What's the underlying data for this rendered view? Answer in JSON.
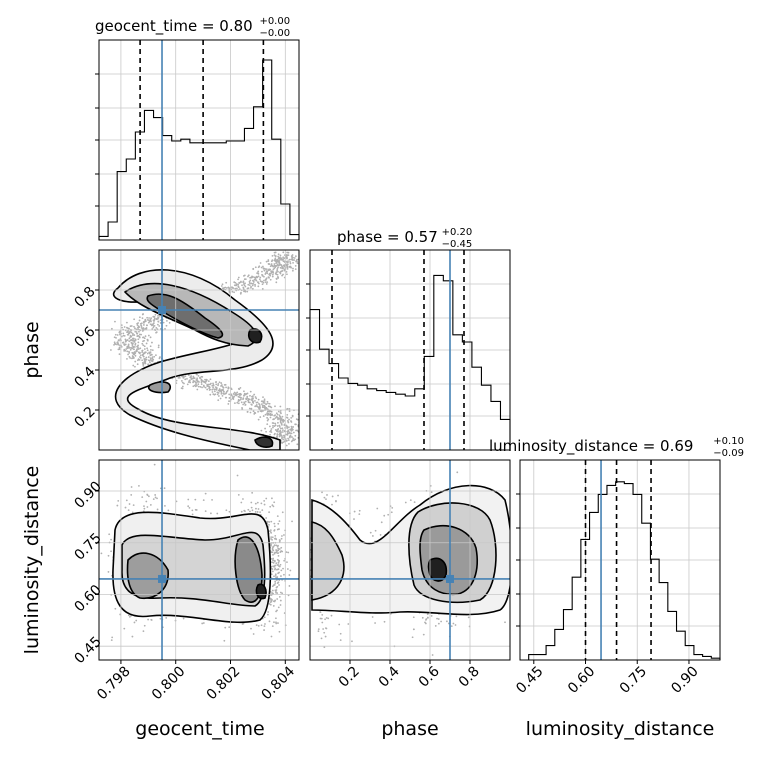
{
  "chart_data": {
    "type": "corner",
    "parameters": [
      "geocent_time",
      "phase",
      "luminosity_distance"
    ],
    "truths": [
      0.7995,
      0.7,
      0.645
    ],
    "truth_color": "#4682b4",
    "titles": [
      {
        "param": "geocent_time",
        "text": "geocent_time = 0.80",
        "sup": "+0.00",
        "sub": "−0.00"
      },
      {
        "param": "phase",
        "text": "phase = 0.57",
        "sup": "+0.20",
        "sub": "−0.45"
      },
      {
        "param": "luminosity_distance",
        "text": "luminosity_distance = 0.69",
        "sup": "+0.10",
        "sub": "−0.09"
      }
    ],
    "axis_labels": {
      "x": [
        "geocent_time",
        "phase",
        "luminosity_distance"
      ],
      "y": [
        "phase",
        "luminosity_distance"
      ]
    },
    "ranges": {
      "geocent_time": [
        0.7972,
        0.8045
      ],
      "phase": [
        0.0,
        1.0
      ],
      "luminosity_distance": [
        0.41,
        0.99
      ]
    },
    "ticks": {
      "geocent_time": [
        "0.798",
        "0.800",
        "0.802",
        "0.804"
      ],
      "phase": [
        "0.2",
        "0.4",
        "0.6",
        "0.8"
      ],
      "luminosity_distance": [
        "0.45",
        "0.60",
        "0.75",
        "0.90"
      ]
    },
    "quantiles": {
      "geocent_time": [
        0.7987,
        0.801,
        0.8032
      ],
      "phase": [
        0.11,
        0.57,
        0.77
      ],
      "luminosity_distance": [
        0.6,
        0.69,
        0.79
      ]
    },
    "histograms": {
      "geocent_time": {
        "bins": [
          0.7972,
          0.8045
        ],
        "values": [
          0.02,
          0.1,
          0.38,
          0.45,
          0.6,
          0.72,
          0.68,
          0.58,
          0.55,
          0.56,
          0.54,
          0.54,
          0.54,
          0.54,
          0.55,
          0.55,
          0.62,
          0.74,
          1.0,
          0.56,
          0.2,
          0.03
        ]
      },
      "phase": {
        "bins": [
          0.0,
          1.0
        ],
        "values": [
          0.78,
          0.56,
          0.48,
          0.4,
          0.37,
          0.36,
          0.34,
          0.33,
          0.32,
          0.31,
          0.3,
          0.34,
          0.52,
          0.97,
          0.94,
          0.64,
          0.6,
          0.46,
          0.36,
          0.27,
          0.17
        ]
      },
      "luminosity_distance": {
        "bins": [
          0.41,
          0.99
        ],
        "values": [
          0.0,
          0.03,
          0.03,
          0.08,
          0.17,
          0.28,
          0.46,
          0.67,
          0.82,
          0.92,
          0.97,
          0.99,
          0.98,
          0.92,
          0.76,
          0.56,
          0.43,
          0.27,
          0.16,
          0.08,
          0.03,
          0.02,
          0.01
        ]
      }
    },
    "grid": true
  }
}
